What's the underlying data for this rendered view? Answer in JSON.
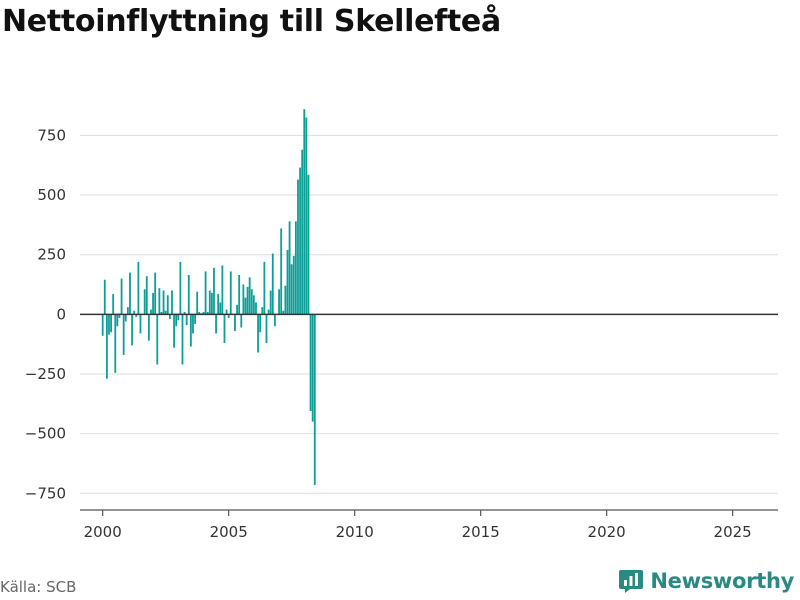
{
  "title": "Nettoinflyttning till Skellefteå",
  "source": "Källa: SCB",
  "brand": "Newsworthy",
  "colors": {
    "bar": "#0e9e96",
    "grid": "#dddddd",
    "axis": "#555555",
    "brand": "#2a8a83"
  },
  "chart_data": {
    "type": "bar",
    "title": "Nettoinflyttning till Skellefteå",
    "xlabel": "",
    "ylabel": "",
    "frequency": "monthly",
    "x_start": "2000-01",
    "xlim": [
      1999.1,
      2026.8
    ],
    "ylim": [
      -820,
      890
    ],
    "yticks": [
      -750,
      -500,
      -250,
      0,
      250,
      500,
      750
    ],
    "ytick_labels": [
      "−750",
      "−500",
      "−250",
      "0",
      "250",
      "500",
      "750"
    ],
    "xticks": [
      2000,
      2005,
      2010,
      2015,
      2020,
      2025
    ],
    "xtick_labels": [
      "2000",
      "2005",
      "2010",
      "2015",
      "2020",
      "2025"
    ],
    "values": [
      -90,
      145,
      -270,
      -85,
      -75,
      85,
      -245,
      -50,
      -15,
      150,
      -170,
      -30,
      30,
      175,
      -130,
      15,
      -10,
      220,
      -80,
      0,
      105,
      160,
      -110,
      20,
      90,
      175,
      -210,
      110,
      10,
      100,
      15,
      80,
      -20,
      100,
      -140,
      -50,
      -25,
      220,
      -210,
      10,
      -45,
      165,
      -135,
      -80,
      -40,
      95,
      10,
      5,
      10,
      180,
      10,
      100,
      90,
      195,
      -80,
      85,
      50,
      205,
      -120,
      20,
      -15,
      180,
      0,
      -70,
      40,
      165,
      -55,
      125,
      70,
      115,
      155,
      105,
      80,
      50,
      -160,
      -75,
      30,
      220,
      -120,
      20,
      100,
      255,
      -50,
      0,
      105,
      360,
      15,
      120,
      270,
      390,
      210,
      245,
      390,
      565,
      615,
      690,
      860,
      825,
      585,
      -405,
      -450,
      -715
    ]
  }
}
